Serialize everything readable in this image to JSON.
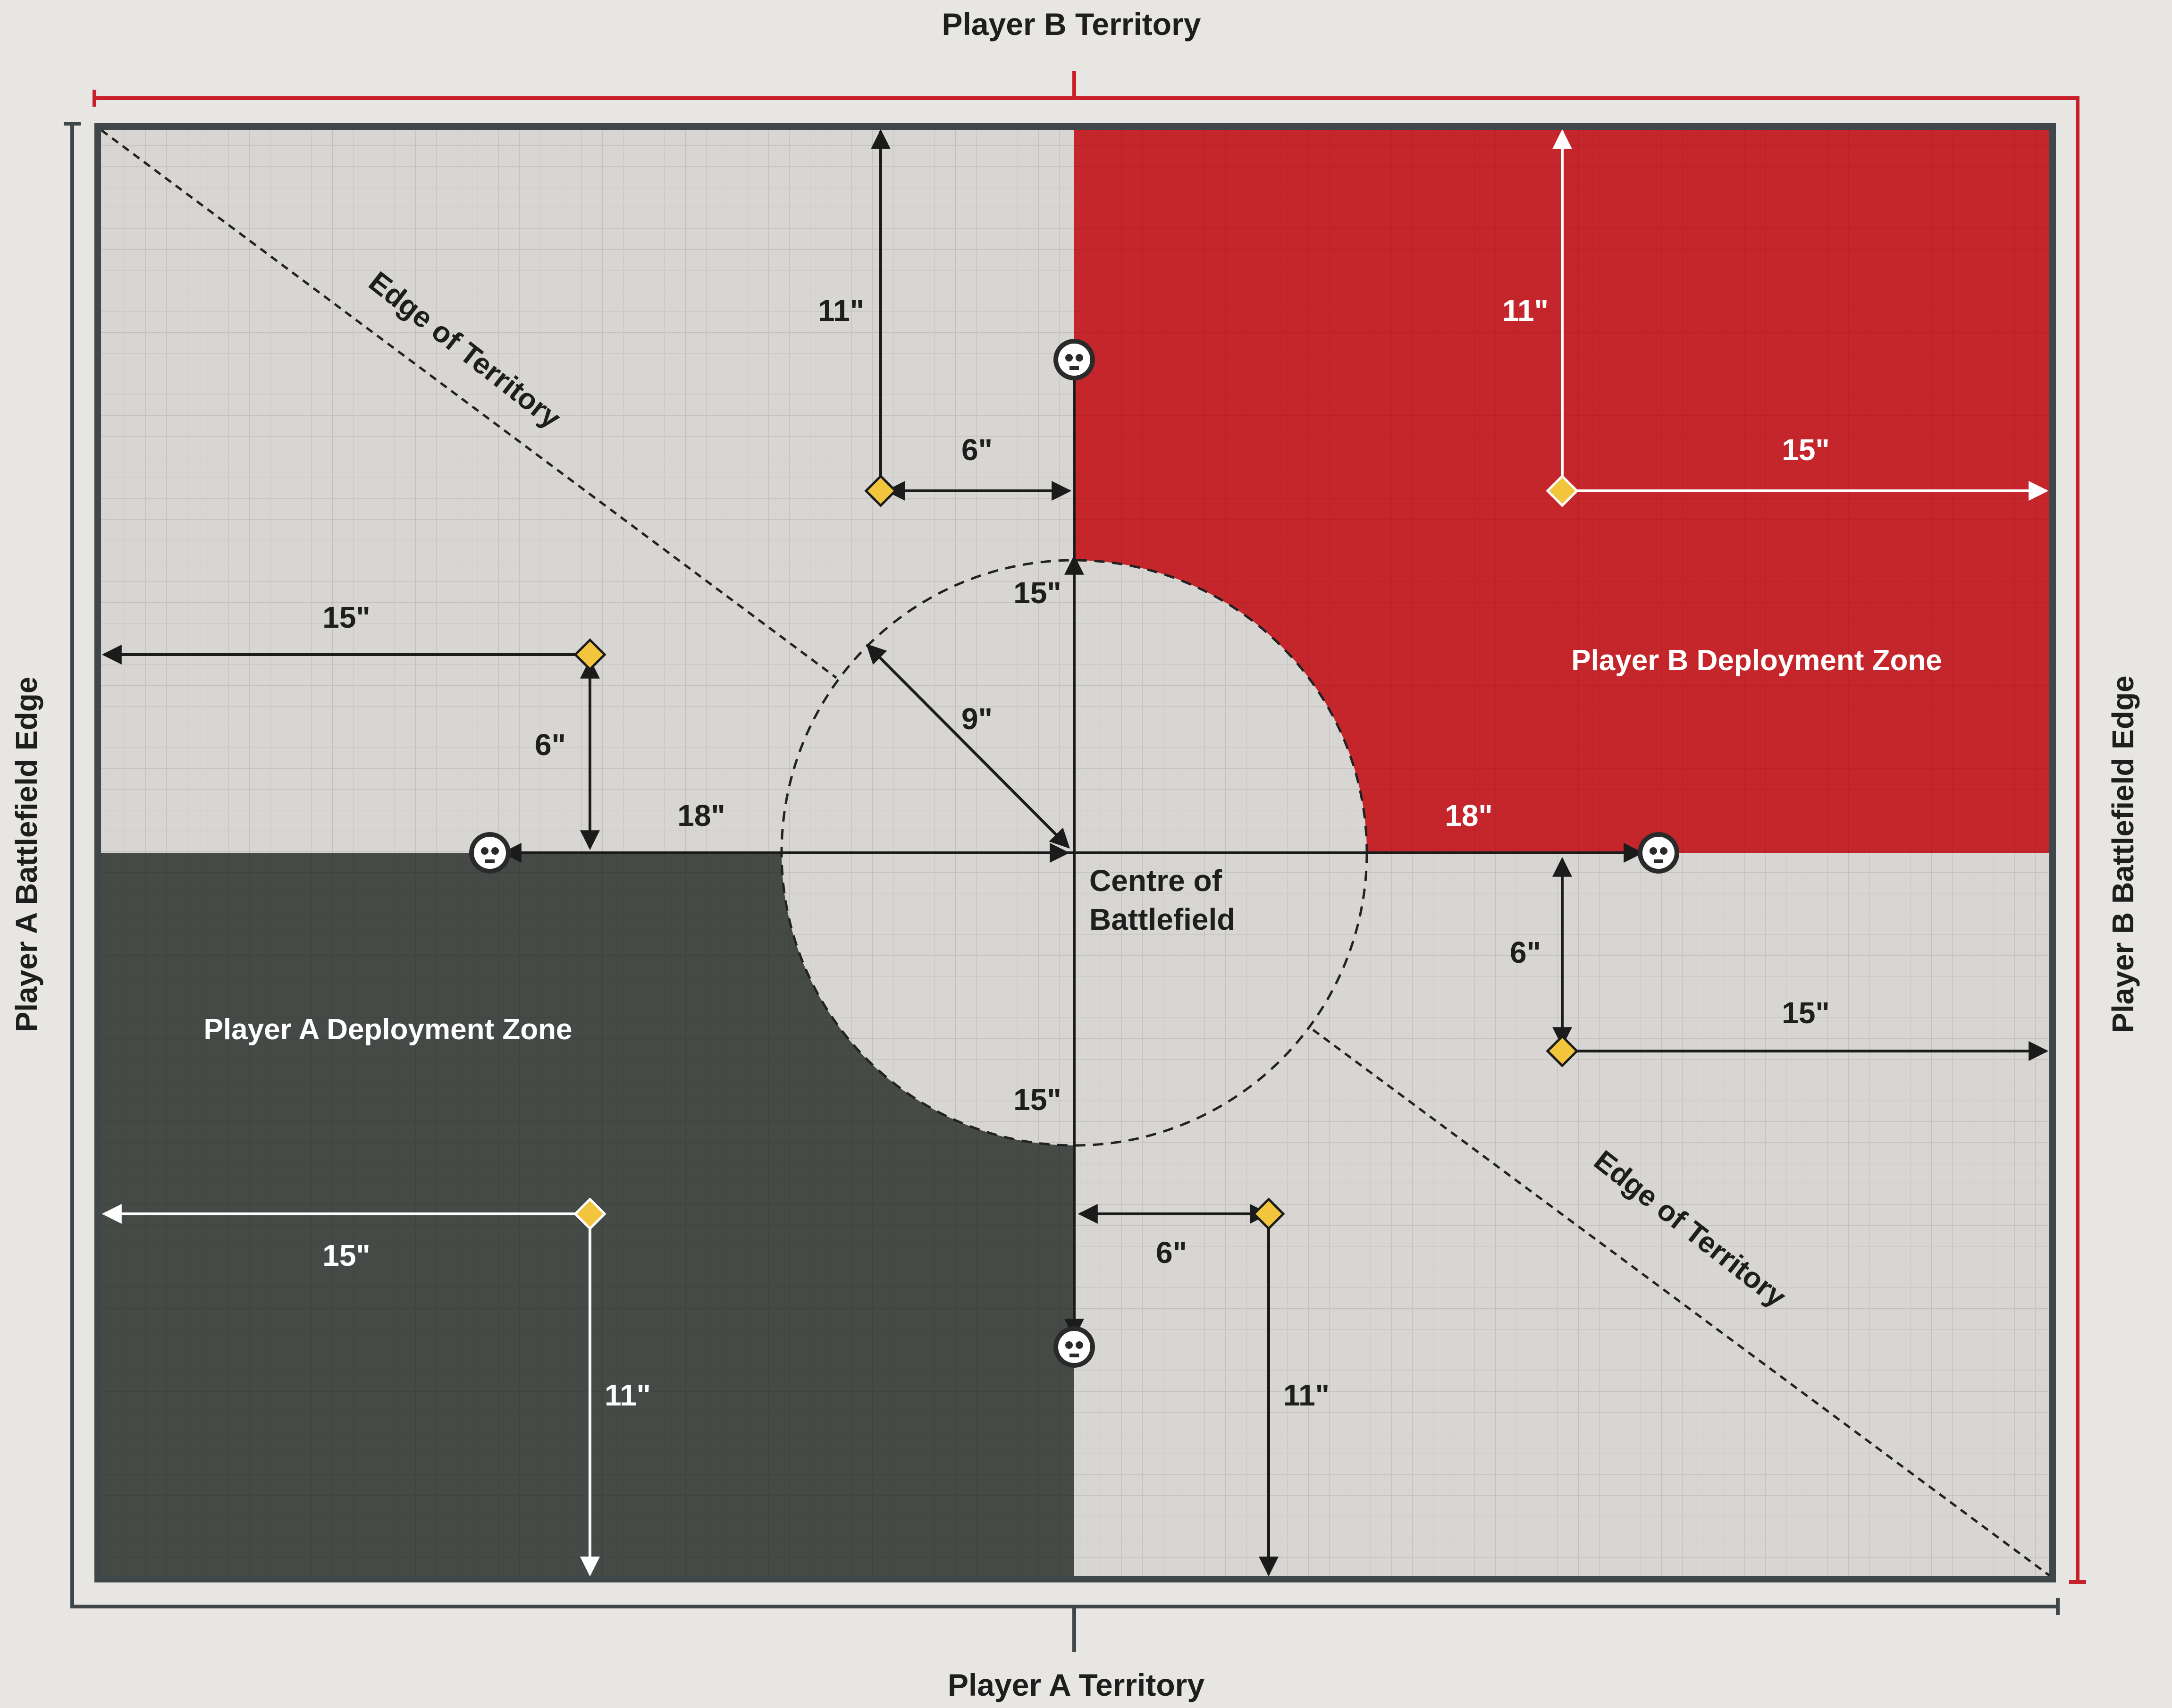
{
  "labels": {
    "top_territory": "Player B Territory",
    "bottom_territory": "Player A Territory",
    "left_edge": "Player A Battlefield Edge",
    "right_edge": "Player B Battlefield Edge",
    "zone_a": "Player A Deployment Zone",
    "zone_b": "Player B Deployment Zone",
    "centre_line1": "Centre of",
    "centre_line2": "Battlefield",
    "edge_territory_ul": "Edge of Territory",
    "edge_territory_lr": "Edge of Territory"
  },
  "measurements": {
    "top_centre_11": "11\"",
    "top_centre_6": "6\"",
    "right_top_11": "11\"",
    "right_top_15": "15\"",
    "left_15": "15\"",
    "left_6": "6\"",
    "left_18": "18\"",
    "radius_9": "9\"",
    "centre_up_15": "15\"",
    "centre_down_15": "15\"",
    "right_18": "18\"",
    "right_6": "6\"",
    "right_15": "15\"",
    "bottom_left_15": "15\"",
    "bottom_left_11": "11\"",
    "bottom_centre_6": "6\"",
    "bottom_centre_11": "11\""
  },
  "colors": {
    "player_a_zone": "#454a47",
    "player_b_zone": "#c4262b",
    "neutral_ground": "#d8d6d2",
    "edge_line_a": "#3f474b",
    "edge_line_b": "#c8202a",
    "objective": "#f2c53d"
  },
  "icons": {
    "objective_marker": "skull-objective-icon",
    "deployment_point": "diamond-marker-icon"
  }
}
